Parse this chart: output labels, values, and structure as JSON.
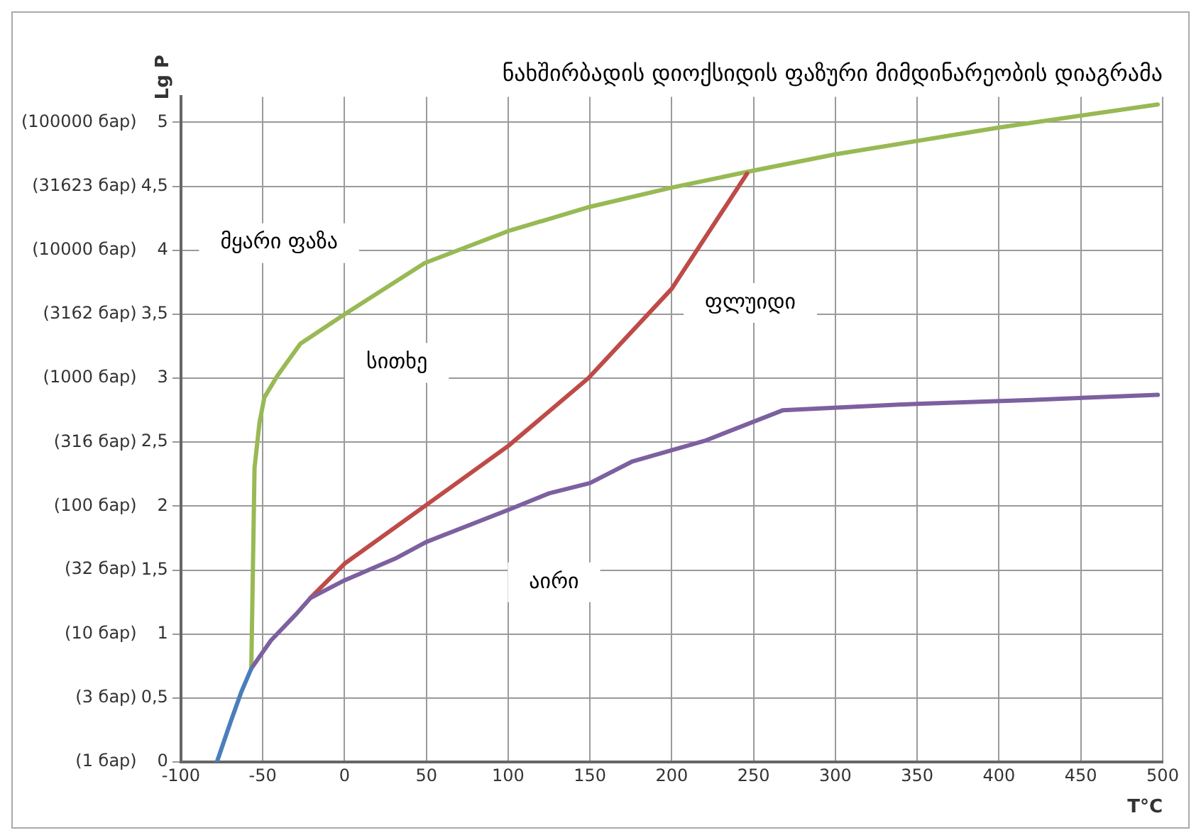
{
  "chart_data": {
    "type": "line",
    "title": "ნახშირბადის დიოქსიდის ფაზური მიმდინარეობის დიაგრამა",
    "xlabel": "T°C",
    "ylabel": "Lg P",
    "xlim": [
      -100,
      500
    ],
    "xticks": [
      -100,
      -50,
      0,
      50,
      100,
      150,
      200,
      250,
      300,
      350,
      400,
      450,
      500
    ],
    "ylim": [
      0,
      5.2
    ],
    "yticks": [
      0,
      {
        "value": 0.5,
        "label": "0,5"
      },
      1,
      {
        "value": 1.5,
        "label": "1,5"
      },
      2,
      {
        "value": 2.5,
        "label": "2,5"
      },
      3,
      {
        "value": 3.5,
        "label": "3,5"
      },
      4,
      {
        "value": 4.5,
        "label": "4,5"
      },
      5
    ],
    "y2lim": [
      1,
      158489
    ],
    "y2ticks": [
      {
        "value": 1,
        "label": "(1 бар)"
      },
      {
        "value": 3.162,
        "label": "(3 бар)"
      },
      {
        "value": 10,
        "label": "(10 бар)"
      },
      {
        "value": 32,
        "label": "(32 бар)"
      },
      {
        "value": 100,
        "label": "(100 бар)"
      },
      {
        "value": 316,
        "label": "(316 бар)"
      },
      {
        "value": 1000,
        "label": "(1000 бар)"
      },
      {
        "value": 3162,
        "label": "(3162 бар)"
      },
      {
        "value": 10000,
        "label": "(10000 бар)"
      },
      {
        "value": 31623,
        "label": "(31623 бар)"
      },
      {
        "value": 100000,
        "label": "(100000 бар)"
      }
    ],
    "grid": true,
    "legend": false,
    "log": "y2",
    "marker": "none",
    "series": [
      {
        "color": "#4a7ebb",
        "x": [
          -78,
          -70,
          -63,
          -57
        ],
        "values": [
          0,
          0.3,
          0.55,
          0.73
        ]
      },
      {
        "color": "#7d60a0",
        "x": [
          -57,
          -45,
          -30,
          -21,
          0,
          31,
          50,
          100,
          125,
          150,
          176,
          220,
          268,
          350,
          420,
          497
        ],
        "values": [
          0.73,
          0.95,
          1.15,
          1.28,
          1.42,
          1.59,
          1.72,
          1.97,
          2.1,
          2.18,
          2.35,
          2.51,
          2.75,
          2.8,
          2.83,
          2.87
        ]
      },
      {
        "color": "#be4b48",
        "x": [
          -21,
          0,
          49,
          100,
          149,
          200,
          246
        ],
        "values": [
          1.28,
          1.55,
          2.0,
          2.47,
          3.0,
          3.7,
          4.6
        ]
      },
      {
        "color": "#98b954",
        "x": [
          -57,
          -55,
          -52,
          -49,
          -41,
          -27,
          0,
          49,
          100,
          150,
          200,
          245,
          300,
          400,
          497
        ],
        "values": [
          0.73,
          2.3,
          2.65,
          2.85,
          3.02,
          3.27,
          3.5,
          3.9,
          4.15,
          4.34,
          4.49,
          4.61,
          4.75,
          4.96,
          5.14
        ]
      }
    ],
    "annotations": [
      "მყარი ფაზა",
      "სითხე",
      "ფლუიდი",
      "აირი"
    ]
  }
}
